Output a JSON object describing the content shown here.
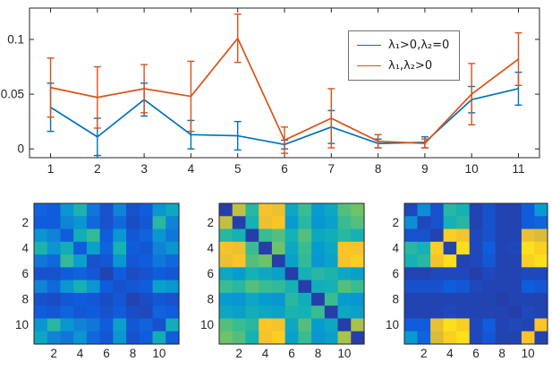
{
  "chart_data": [
    {
      "id": "errorbar-plot",
      "type": "line",
      "title": "",
      "xlabel": "",
      "ylabel": "",
      "grid": false,
      "legend_position": "upper right",
      "x": [
        1,
        2,
        3,
        4,
        5,
        6,
        7,
        8,
        9,
        10,
        11
      ],
      "xtick_labels": [
        "1",
        "2",
        "3",
        "4",
        "5",
        "6",
        "7",
        "8",
        "9",
        "10",
        "11"
      ],
      "xlim": [
        0.55,
        11.45
      ],
      "ylim": [
        -0.008,
        0.1286
      ],
      "yticks": [
        0,
        0.05,
        0.1
      ],
      "ytick_labels": [
        "0",
        "0.05",
        "0.1"
      ],
      "series": [
        {
          "name": "λ₁>0,λ₂=0",
          "color": "#0072BD",
          "y": [
            0.038,
            0.011,
            0.045,
            0.013,
            0.012,
            0.004,
            0.02,
            0.005,
            0.006,
            0.045,
            0.055
          ],
          "yerr": [
            0.022,
            0.017,
            0.015,
            0.013,
            0.013,
            0.004,
            0.015,
            0.004,
            0.005,
            0.012,
            0.015
          ]
        },
        {
          "name": "λ₁,λ₂>0",
          "color": "#D95319",
          "y": [
            0.056,
            0.047,
            0.055,
            0.048,
            0.101,
            0.008,
            0.028,
            0.007,
            0.005,
            0.05,
            0.082
          ],
          "yerr": [
            0.027,
            0.028,
            0.022,
            0.032,
            0.022,
            0.012,
            0.027,
            0.006,
            0.004,
            0.028,
            0.024
          ]
        }
      ]
    },
    {
      "id": "heatmap-left",
      "type": "heatmap",
      "n": 11,
      "ticks": [
        2,
        4,
        6,
        8,
        10
      ],
      "matrix": [
        [
          0.12,
          0.1,
          0.28,
          0.42,
          0.18,
          0.08,
          0.22,
          0.08,
          0.1,
          0.28,
          0.35
        ],
        [
          0.1,
          0.1,
          0.22,
          0.28,
          0.14,
          0.08,
          0.14,
          0.07,
          0.09,
          0.45,
          0.22
        ],
        [
          0.28,
          0.22,
          0.1,
          0.38,
          0.48,
          0.1,
          0.28,
          0.09,
          0.12,
          0.28,
          0.18
        ],
        [
          0.42,
          0.28,
          0.38,
          0.1,
          0.32,
          0.12,
          0.4,
          0.1,
          0.09,
          0.22,
          0.28
        ],
        [
          0.18,
          0.14,
          0.48,
          0.32,
          0.08,
          0.09,
          0.28,
          0.09,
          0.1,
          0.18,
          0.14
        ],
        [
          0.08,
          0.08,
          0.1,
          0.12,
          0.09,
          0.05,
          0.1,
          0.07,
          0.08,
          0.1,
          0.09
        ],
        [
          0.22,
          0.14,
          0.28,
          0.4,
          0.28,
          0.1,
          0.08,
          0.09,
          0.1,
          0.32,
          0.28
        ],
        [
          0.08,
          0.07,
          0.09,
          0.1,
          0.09,
          0.07,
          0.09,
          0.05,
          0.07,
          0.09,
          0.08
        ],
        [
          0.1,
          0.09,
          0.12,
          0.09,
          0.1,
          0.08,
          0.1,
          0.07,
          0.06,
          0.12,
          0.1
        ],
        [
          0.28,
          0.45,
          0.28,
          0.22,
          0.18,
          0.1,
          0.32,
          0.09,
          0.12,
          0.08,
          0.38
        ],
        [
          0.35,
          0.22,
          0.18,
          0.28,
          0.14,
          0.09,
          0.28,
          0.08,
          0.1,
          0.38,
          0.1
        ]
      ]
    },
    {
      "id": "heatmap-middle",
      "type": "heatmap",
      "n": 11,
      "ticks": [
        2,
        4,
        6,
        8,
        10
      ],
      "matrix": [
        [
          0.04,
          0.75,
          0.45,
          0.88,
          0.85,
          0.35,
          0.5,
          0.3,
          0.35,
          0.55,
          0.6
        ],
        [
          0.75,
          0.04,
          0.4,
          0.85,
          0.9,
          0.3,
          0.45,
          0.28,
          0.32,
          0.5,
          0.55
        ],
        [
          0.45,
          0.4,
          0.04,
          0.5,
          0.55,
          0.4,
          0.55,
          0.35,
          0.38,
          0.45,
          0.4
        ],
        [
          0.88,
          0.85,
          0.5,
          0.04,
          0.6,
          0.35,
          0.5,
          0.3,
          0.35,
          0.9,
          0.88
        ],
        [
          0.85,
          0.9,
          0.55,
          0.6,
          0.04,
          0.32,
          0.48,
          0.28,
          0.33,
          0.88,
          0.92
        ],
        [
          0.35,
          0.3,
          0.4,
          0.35,
          0.32,
          0.04,
          0.4,
          0.45,
          0.42,
          0.35,
          0.32
        ],
        [
          0.5,
          0.45,
          0.55,
          0.5,
          0.48,
          0.4,
          0.04,
          0.38,
          0.4,
          0.55,
          0.5
        ],
        [
          0.3,
          0.28,
          0.35,
          0.3,
          0.28,
          0.45,
          0.38,
          0.04,
          0.5,
          0.3,
          0.28
        ],
        [
          0.35,
          0.32,
          0.38,
          0.35,
          0.33,
          0.42,
          0.4,
          0.5,
          0.04,
          0.35,
          0.32
        ],
        [
          0.55,
          0.5,
          0.45,
          0.9,
          0.88,
          0.35,
          0.55,
          0.3,
          0.35,
          0.04,
          0.7
        ],
        [
          0.6,
          0.55,
          0.4,
          0.88,
          0.92,
          0.32,
          0.5,
          0.28,
          0.32,
          0.7,
          0.04
        ]
      ]
    },
    {
      "id": "heatmap-right",
      "type": "heatmap",
      "n": 11,
      "ticks": [
        2,
        4,
        6,
        8,
        10
      ],
      "matrix": [
        [
          0.06,
          0.25,
          0.08,
          0.45,
          0.4,
          0.05,
          0.08,
          0.05,
          0.05,
          0.1,
          0.3
        ],
        [
          0.25,
          0.06,
          0.08,
          0.4,
          0.45,
          0.05,
          0.08,
          0.05,
          0.05,
          0.1,
          0.12
        ],
        [
          0.08,
          0.08,
          0.05,
          0.92,
          0.88,
          0.06,
          0.08,
          0.05,
          0.05,
          0.85,
          0.8
        ],
        [
          0.45,
          0.4,
          0.92,
          0.05,
          0.95,
          0.06,
          0.1,
          0.05,
          0.06,
          0.95,
          0.92
        ],
        [
          0.4,
          0.45,
          0.88,
          0.95,
          0.05,
          0.06,
          0.09,
          0.05,
          0.05,
          0.92,
          0.95
        ],
        [
          0.05,
          0.05,
          0.06,
          0.06,
          0.06,
          0.04,
          0.06,
          0.05,
          0.05,
          0.06,
          0.06
        ],
        [
          0.08,
          0.08,
          0.08,
          0.1,
          0.09,
          0.06,
          0.05,
          0.05,
          0.05,
          0.1,
          0.09
        ],
        [
          0.05,
          0.05,
          0.05,
          0.05,
          0.05,
          0.05,
          0.05,
          0.04,
          0.05,
          0.05,
          0.05
        ],
        [
          0.05,
          0.05,
          0.05,
          0.06,
          0.05,
          0.05,
          0.05,
          0.05,
          0.04,
          0.06,
          0.05
        ],
        [
          0.1,
          0.1,
          0.85,
          0.95,
          0.92,
          0.06,
          0.1,
          0.05,
          0.06,
          0.05,
          0.9
        ],
        [
          0.3,
          0.12,
          0.8,
          0.92,
          0.95,
          0.06,
          0.09,
          0.05,
          0.05,
          0.9,
          0.05
        ]
      ]
    }
  ],
  "colormap": {
    "name": "parula",
    "stops": [
      [
        0.0,
        "#352a87"
      ],
      [
        0.1,
        "#0f5cdd"
      ],
      [
        0.2,
        "#127dd8"
      ],
      [
        0.3,
        "#079ccf"
      ],
      [
        0.4,
        "#15b1b4"
      ],
      [
        0.5,
        "#39bc91"
      ],
      [
        0.6,
        "#6ec269"
      ],
      [
        0.7,
        "#a9c249"
      ],
      [
        0.8,
        "#d9bd3a"
      ],
      [
        0.9,
        "#fcc427"
      ],
      [
        1.0,
        "#f9fb0e"
      ]
    ]
  },
  "axis": {
    "color": "#262626",
    "tick_font_px": 13.5
  }
}
